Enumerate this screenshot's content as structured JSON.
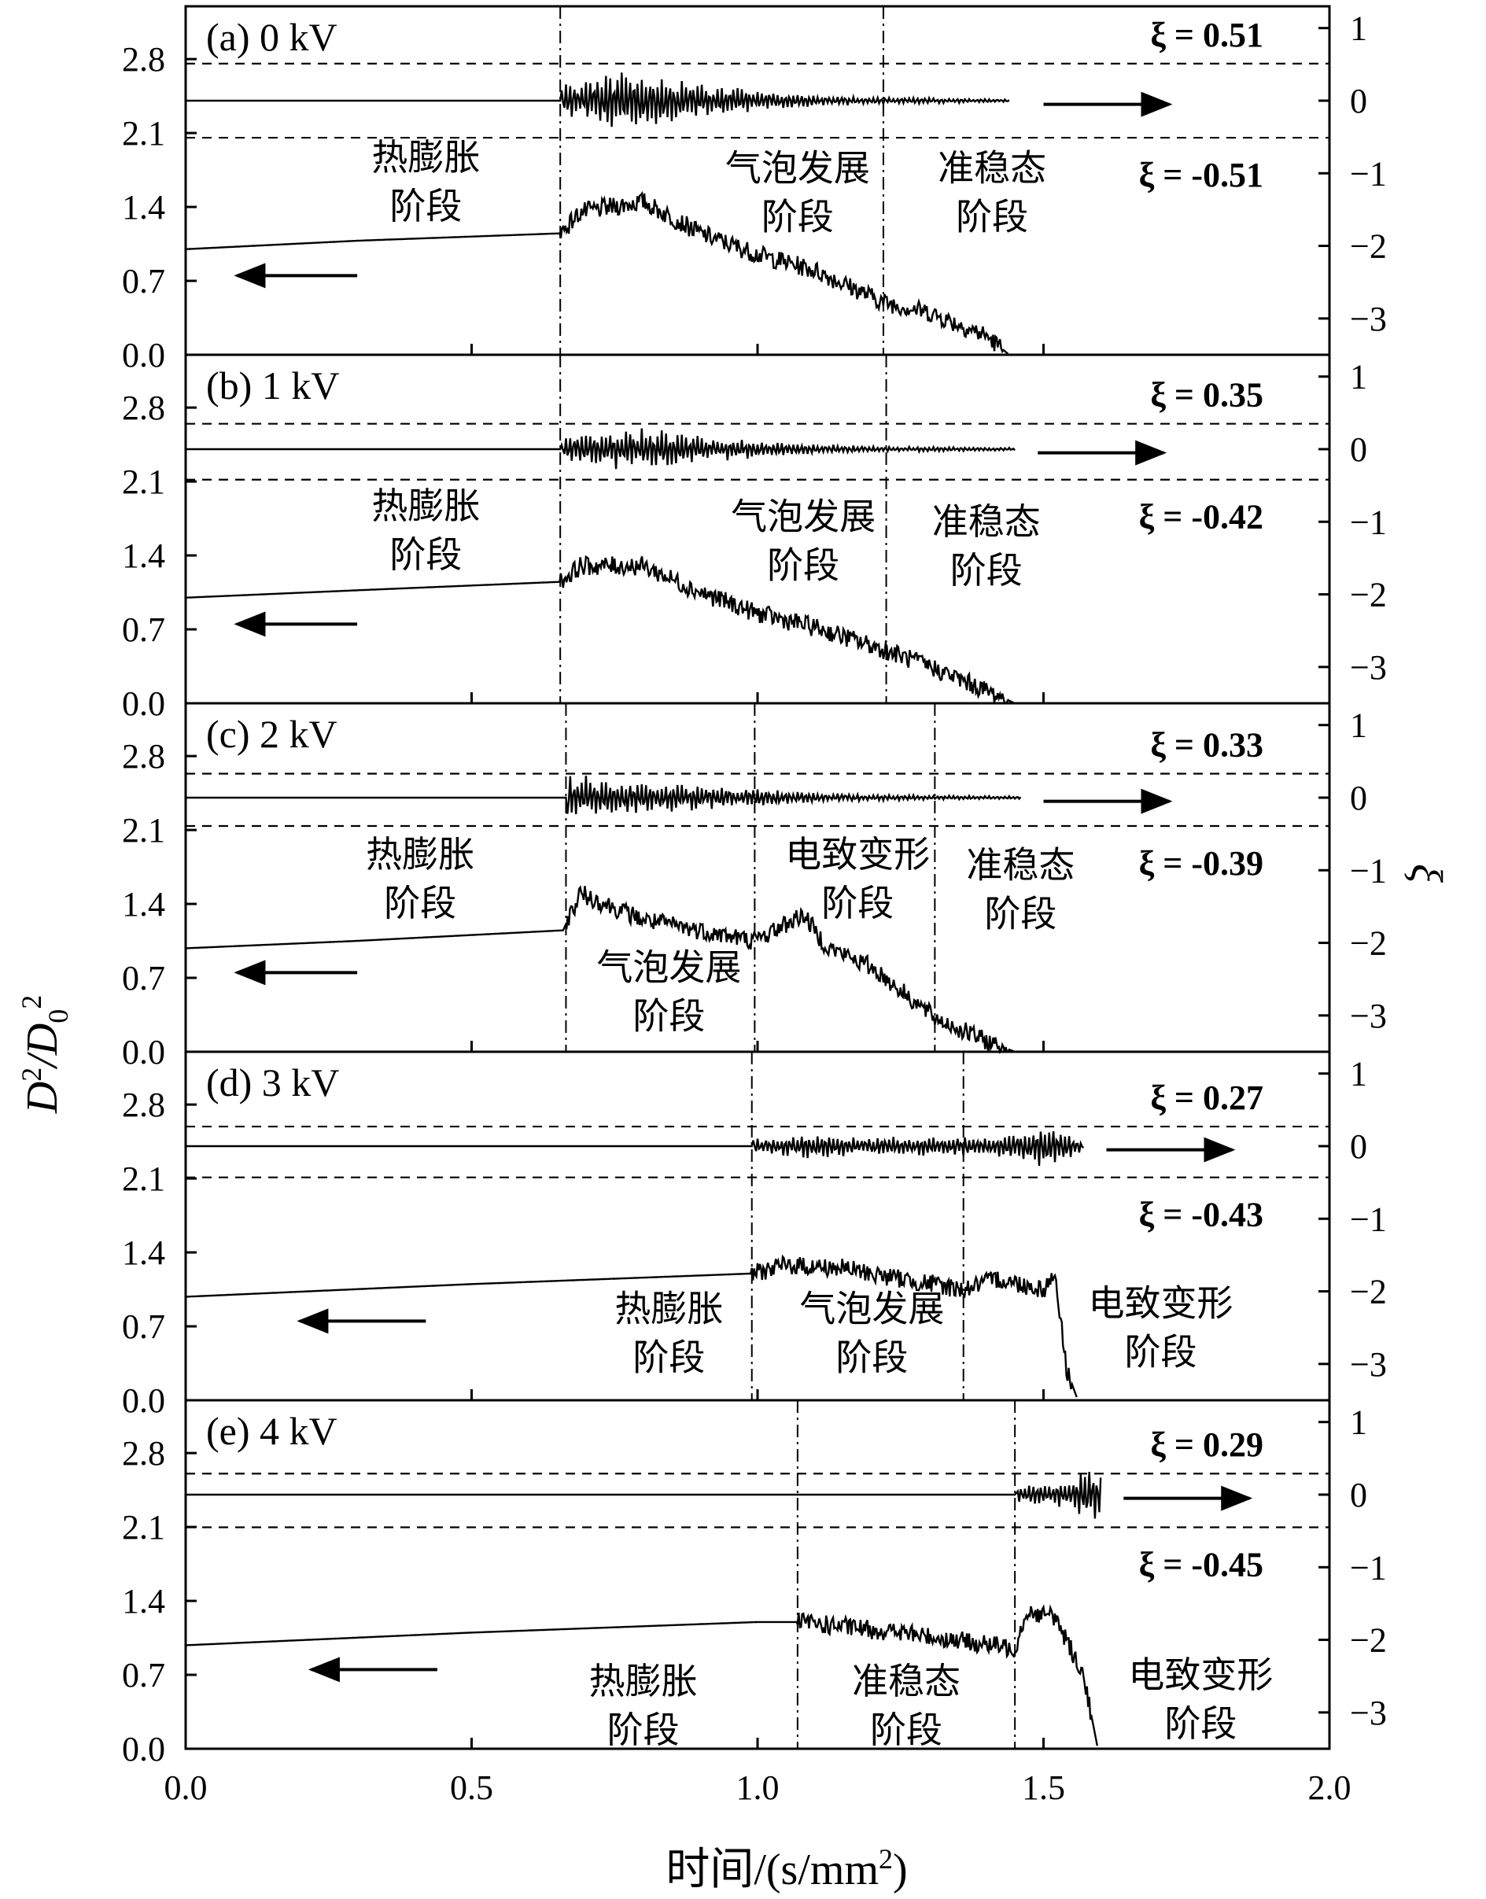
{
  "chart_data": {
    "type": "line",
    "xlabel": "时间/(s/mm",
    "xlabel_sup": "2",
    "xlabel_close": ")",
    "ylabel_left": "D",
    "ylabel_left_sup": "2",
    "ylabel_left_mid": "/D",
    "ylabel_left_sub": "0",
    "ylabel_left_sup2": "2",
    "ylabel_right": "ξ",
    "xlim": [
      0,
      2.0
    ],
    "x_ticks": [
      "0.0",
      "0.5",
      "1.0",
      "1.5",
      "2.0"
    ],
    "x_tick_values": [
      0,
      0.5,
      1.0,
      1.5,
      2.0
    ],
    "ylim_left": [
      0,
      3.3
    ],
    "y_left_ticks": [
      "0.0",
      "0.7",
      "1.4",
      "2.1",
      "2.8"
    ],
    "y_left_tick_values": [
      0,
      0.7,
      1.4,
      2.1,
      2.8
    ],
    "ylim_right": [
      -3.5,
      1.3
    ],
    "y_right_ticks": [
      "1",
      "0",
      "−1",
      "−2",
      "−3"
    ],
    "y_right_tick_values": [
      1,
      0,
      -1,
      -2,
      -3
    ],
    "arrow_left_x": [
      0.09,
      0.3
    ],
    "arrow_right_x_panel_offset": 0.22,
    "panels": [
      {
        "label": "(a) 0 kV",
        "voltage_kV": 0,
        "xi_upper": 0.51,
        "xi_upper_label": "ξ = 0.51",
        "xi_lower": -0.51,
        "xi_lower_label": "ξ = -0.51",
        "boundaries": [
          0.655,
          1.22
        ],
        "xi_end": 1.44,
        "end_x": 1.44,
        "arrow_left_x": [
          0.09,
          0.3
        ],
        "arrow_right_x": [
          1.5,
          1.72
        ],
        "stages": [
          {
            "name": "热膨胀",
            "sub": "阶段",
            "x": 0.42,
            "y": 1.75
          },
          {
            "name": "气泡发展",
            "sub": "阶段",
            "x": 1.07,
            "y": 1.65
          },
          {
            "name": "准稳态",
            "sub": "阶段",
            "x": 1.41,
            "y": 1.65
          }
        ],
        "d2_points": [
          [
            0.0,
            1.0
          ],
          [
            0.3,
            1.08
          ],
          [
            0.655,
            1.15
          ],
          [
            0.69,
            1.35
          ],
          [
            0.8,
            1.45
          ],
          [
            0.9,
            1.15
          ],
          [
            1.0,
            0.95
          ],
          [
            1.1,
            0.8
          ],
          [
            1.22,
            0.5
          ],
          [
            1.3,
            0.4
          ],
          [
            1.4,
            0.18
          ],
          [
            1.44,
            0.0
          ]
        ],
        "xi_amplitude": [
          [
            0.655,
            0.2
          ],
          [
            0.75,
            0.45
          ],
          [
            0.8,
            0.45
          ],
          [
            0.9,
            0.25
          ],
          [
            1.0,
            0.15
          ],
          [
            1.1,
            0.08
          ],
          [
            1.22,
            0.05
          ],
          [
            1.44,
            0.02
          ]
        ]
      },
      {
        "label": "(b) 1 kV",
        "voltage_kV": 1,
        "xi_upper": 0.35,
        "xi_upper_label": "ξ = 0.35",
        "xi_lower": -0.42,
        "xi_lower_label": "ξ = -0.42",
        "boundaries": [
          0.655,
          1.225
        ],
        "xi_end": 1.45,
        "end_x": 1.45,
        "arrow_left_x": [
          0.09,
          0.3
        ],
        "arrow_right_x": [
          1.49,
          1.71
        ],
        "stages": [
          {
            "name": "热膨胀",
            "sub": "阶段",
            "x": 0.42,
            "y": 1.75
          },
          {
            "name": "气泡发展",
            "sub": "阶段",
            "x": 1.08,
            "y": 1.65
          },
          {
            "name": "准稳态",
            "sub": "阶段",
            "x": 1.4,
            "y": 1.6
          }
        ],
        "d2_points": [
          [
            0.0,
            1.0
          ],
          [
            0.3,
            1.07
          ],
          [
            0.655,
            1.15
          ],
          [
            0.69,
            1.3
          ],
          [
            0.8,
            1.3
          ],
          [
            0.9,
            1.05
          ],
          [
            1.0,
            0.85
          ],
          [
            1.1,
            0.72
          ],
          [
            1.225,
            0.5
          ],
          [
            1.3,
            0.35
          ],
          [
            1.4,
            0.12
          ],
          [
            1.45,
            0.0
          ]
        ],
        "xi_amplitude": [
          [
            0.655,
            0.15
          ],
          [
            0.75,
            0.3
          ],
          [
            0.8,
            0.3
          ],
          [
            0.9,
            0.2
          ],
          [
            1.0,
            0.12
          ],
          [
            1.1,
            0.07
          ],
          [
            1.225,
            0.04
          ],
          [
            1.45,
            0.02
          ]
        ]
      },
      {
        "label": "(c) 2 kV",
        "voltage_kV": 2,
        "xi_upper": 0.33,
        "xi_upper_label": "ξ = 0.33",
        "xi_lower": -0.39,
        "xi_lower_label": "ξ = -0.39",
        "boundaries": [
          0.665,
          0.995,
          1.31
        ],
        "xi_end": 1.46,
        "end_x": 1.45,
        "arrow_left_x": [
          0.09,
          0.3
        ],
        "arrow_right_x": [
          1.5,
          1.72
        ],
        "stages": [
          {
            "name": "热膨胀",
            "sub": "阶段",
            "x": 0.41,
            "y": 1.75
          },
          {
            "name": "气泡发展",
            "sub": "阶段",
            "x": 0.845,
            "y": 0.68
          },
          {
            "name": "电致变形",
            "sub": "阶段",
            "x": 1.175,
            "y": 1.75
          },
          {
            "name": "准稳态",
            "sub": "阶段",
            "x": 1.46,
            "y": 1.65
          }
        ],
        "d2_points": [
          [
            0.0,
            0.98
          ],
          [
            0.3,
            1.05
          ],
          [
            0.66,
            1.15
          ],
          [
            0.69,
            1.5
          ],
          [
            0.8,
            1.25
          ],
          [
            0.9,
            1.15
          ],
          [
            0.995,
            1.05
          ],
          [
            1.08,
            1.3
          ],
          [
            1.12,
            1.0
          ],
          [
            1.2,
            0.8
          ],
          [
            1.31,
            0.32
          ],
          [
            1.4,
            0.1
          ],
          [
            1.45,
            0.0
          ]
        ],
        "xi_amplitude": [
          [
            0.665,
            0.35
          ],
          [
            0.75,
            0.25
          ],
          [
            0.85,
            0.2
          ],
          [
            0.995,
            0.14
          ],
          [
            1.1,
            0.07
          ],
          [
            1.2,
            0.05
          ],
          [
            1.31,
            0.03
          ],
          [
            1.46,
            0.02
          ]
        ]
      },
      {
        "label": "(d) 3 kV",
        "voltage_kV": 3,
        "xi_upper": 0.27,
        "xi_upper_label": "ξ = 0.27",
        "xi_lower": -0.43,
        "xi_lower_label": "ξ = -0.43",
        "boundaries": [
          0.99,
          1.36
        ],
        "xi_end": 1.57,
        "end_x": 1.56,
        "arrow_left_x": [
          0.2,
          0.42
        ],
        "arrow_right_x": [
          1.61,
          1.83
        ],
        "stages": [
          {
            "name": "热膨胀",
            "sub": "阶段",
            "x": 0.845,
            "y": 0.75
          },
          {
            "name": "气泡发展",
            "sub": "阶段",
            "x": 1.2,
            "y": 0.75
          },
          {
            "name": "电致变形",
            "sub": "阶段",
            "x": 1.705,
            "y": 0.8
          }
        ],
        "d2_points": [
          [
            0.0,
            0.98
          ],
          [
            0.5,
            1.1
          ],
          [
            0.99,
            1.2
          ],
          [
            1.05,
            1.28
          ],
          [
            1.15,
            1.25
          ],
          [
            1.25,
            1.15
          ],
          [
            1.36,
            1.05
          ],
          [
            1.42,
            1.15
          ],
          [
            1.5,
            1.05
          ],
          [
            1.52,
            1.2
          ],
          [
            1.54,
            0.3
          ],
          [
            1.56,
            0.0
          ]
        ],
        "xi_amplitude": [
          [
            0.99,
            0.1
          ],
          [
            1.1,
            0.18
          ],
          [
            1.2,
            0.12
          ],
          [
            1.36,
            0.15
          ],
          [
            1.45,
            0.2
          ],
          [
            1.52,
            0.35
          ],
          [
            1.57,
            0.05
          ]
        ]
      },
      {
        "label": "(e) 4 kV",
        "voltage_kV": 4,
        "xi_upper": 0.29,
        "xi_upper_label": "ξ = 0.29",
        "xi_lower": -0.45,
        "xi_lower_label": "ξ = -0.45",
        "boundaries": [
          1.07,
          1.45
        ],
        "xi_end": 1.6,
        "end_x": 1.595,
        "arrow_left_x": [
          0.22,
          0.44
        ],
        "arrow_right_x": [
          1.64,
          1.86
        ],
        "stages": [
          {
            "name": "热膨胀",
            "sub": "阶段",
            "x": 0.8,
            "y": 0.52
          },
          {
            "name": "准稳态",
            "sub": "阶段",
            "x": 1.26,
            "y": 0.52
          },
          {
            "name": "电致变形",
            "sub": "阶段",
            "x": 1.775,
            "y": 0.58
          }
        ],
        "d2_points": [
          [
            0.0,
            0.98
          ],
          [
            0.5,
            1.1
          ],
          [
            1.0,
            1.2
          ],
          [
            1.07,
            1.2
          ],
          [
            1.25,
            1.1
          ],
          [
            1.45,
            0.95
          ],
          [
            1.47,
            1.3
          ],
          [
            1.52,
            1.25
          ],
          [
            1.57,
            0.7
          ],
          [
            1.595,
            0.0
          ]
        ],
        "xi_amplitude": [
          [
            1.45,
            0.12
          ],
          [
            1.5,
            0.15
          ],
          [
            1.55,
            0.2
          ],
          [
            1.58,
            0.45
          ],
          [
            1.6,
            0.3
          ]
        ]
      }
    ]
  }
}
